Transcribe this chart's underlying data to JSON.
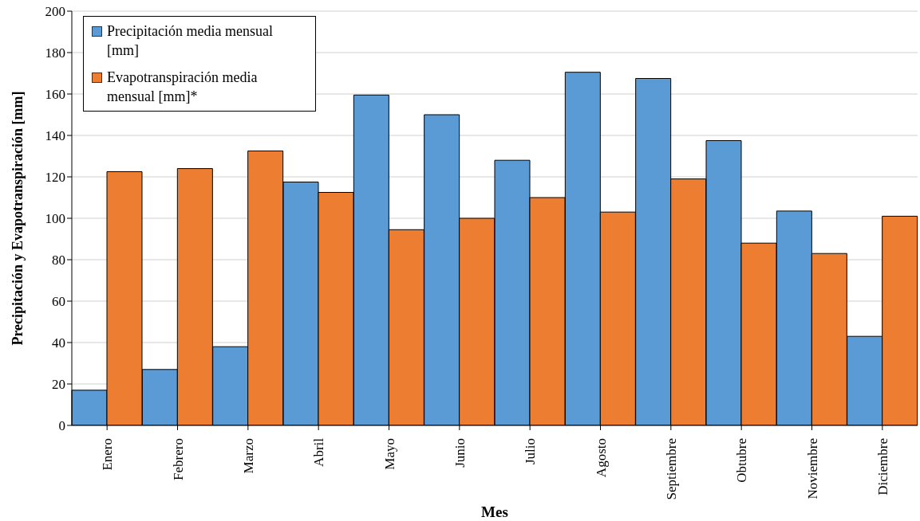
{
  "chart_data": {
    "type": "bar",
    "xlabel": "Mes",
    "ylabel": "Precipitación y Evapotranspiración [mm]",
    "categories": [
      "Enero",
      "Febrero",
      "Marzo",
      "Abril",
      "Mayo",
      "Junio",
      "Julio",
      "Agosto",
      "Septiembre",
      "Obtubre",
      "Noviembre",
      "Diciembre"
    ],
    "series": [
      {
        "name": "Precipitación media mensual [mm]",
        "color": "#5b9bd5",
        "values": [
          17,
          27,
          38,
          117.5,
          159.5,
          150,
          128,
          170.5,
          167.5,
          137.5,
          103.5,
          43
        ]
      },
      {
        "name": "Evapotranspiración media mensual [mm]*",
        "color": "#ed7d31",
        "values": [
          122.5,
          124,
          132.5,
          112.5,
          94.5,
          100,
          110,
          103,
          119,
          88,
          83,
          101
        ]
      }
    ],
    "ylim": [
      0,
      200
    ],
    "yticks": [
      0,
      20,
      40,
      60,
      80,
      100,
      120,
      140,
      160,
      180,
      200
    ],
    "grid": "y",
    "legend": "top left"
  }
}
